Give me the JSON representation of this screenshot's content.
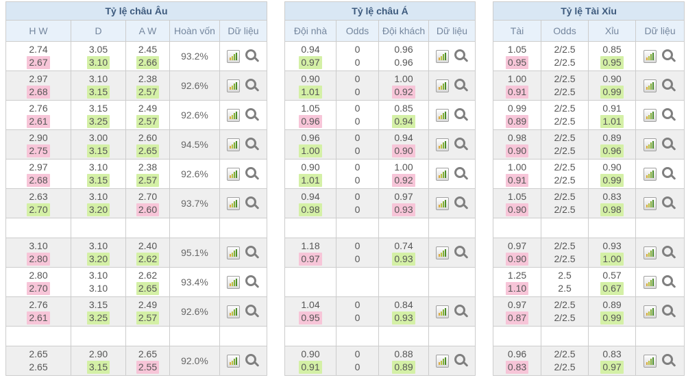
{
  "colors": {
    "pink": "#f7c5d8",
    "green": "#d4f0a6"
  },
  "icons": {
    "chart_icon": "bar-chart",
    "search_icon": "magnifier"
  },
  "tables": [
    {
      "id": "european-odds",
      "title": "Tỷ lệ châu Âu",
      "columns": [
        "H W",
        "D",
        "A W",
        "Hoàn vốn",
        "Dữ liệu"
      ],
      "has_payout": true,
      "rows": [
        {
          "type": "data",
          "odds": [
            [
              "2.74",
              "2.67",
              "pink"
            ],
            [
              "3.05",
              "3.10",
              "green"
            ],
            [
              "2.45",
              "2.66",
              "green"
            ]
          ],
          "payout": "93.2%"
        },
        {
          "type": "data",
          "odds": [
            [
              "2.97",
              "2.68",
              "pink"
            ],
            [
              "3.10",
              "3.15",
              "green"
            ],
            [
              "2.38",
              "2.57",
              "green"
            ]
          ],
          "payout": "92.6%"
        },
        {
          "type": "data",
          "odds": [
            [
              "2.76",
              "2.61",
              "pink"
            ],
            [
              "3.15",
              "3.25",
              "green"
            ],
            [
              "2.49",
              "2.57",
              "green"
            ]
          ],
          "payout": "92.6%"
        },
        {
          "type": "data",
          "odds": [
            [
              "2.90",
              "2.75",
              "pink"
            ],
            [
              "3.00",
              "3.15",
              "green"
            ],
            [
              "2.60",
              "2.65",
              "green"
            ]
          ],
          "payout": "94.5%"
        },
        {
          "type": "data",
          "odds": [
            [
              "2.97",
              "2.68",
              "pink"
            ],
            [
              "3.10",
              "3.15",
              "green"
            ],
            [
              "2.38",
              "2.57",
              "green"
            ]
          ],
          "payout": "92.6%"
        },
        {
          "type": "data",
          "odds": [
            [
              "2.63",
              "2.70",
              "green"
            ],
            [
              "3.10",
              "3.20",
              "green"
            ],
            [
              "2.70",
              "2.60",
              "pink"
            ]
          ],
          "payout": "93.7%"
        },
        {
          "type": "spacer"
        },
        {
          "type": "data",
          "odds": [
            [
              "3.10",
              "2.80",
              "pink"
            ],
            [
              "3.10",
              "3.20",
              "green"
            ],
            [
              "2.40",
              "2.62",
              "green"
            ]
          ],
          "payout": "95.1%"
        },
        {
          "type": "data",
          "odds": [
            [
              "2.80",
              "2.70",
              "pink"
            ],
            [
              "3.10",
              "3.10",
              null
            ],
            [
              "2.62",
              "2.65",
              "green"
            ]
          ],
          "payout": "93.4%"
        },
        {
          "type": "data",
          "odds": [
            [
              "2.76",
              "2.61",
              "pink"
            ],
            [
              "3.15",
              "3.25",
              "green"
            ],
            [
              "2.49",
              "2.57",
              "green"
            ]
          ],
          "payout": "92.6%"
        },
        {
          "type": "spacer"
        },
        {
          "type": "data",
          "odds": [
            [
              "2.65",
              "2.65",
              null
            ],
            [
              "2.90",
              "3.15",
              "green"
            ],
            [
              "2.65",
              "2.55",
              "pink"
            ]
          ],
          "payout": "92.0%"
        }
      ]
    },
    {
      "id": "asian-odds",
      "title": "Tỷ lệ châu Á",
      "columns": [
        "Đội nhà",
        "Odds",
        "Đội khách",
        "Dữ liệu"
      ],
      "has_payout": false,
      "rows": [
        {
          "type": "data",
          "odds": [
            [
              "0.94",
              "0.97",
              "green"
            ],
            [
              "0",
              "0",
              null
            ],
            [
              "0.96",
              "0.96",
              null
            ]
          ]
        },
        {
          "type": "data",
          "odds": [
            [
              "0.90",
              "1.01",
              "green"
            ],
            [
              "0",
              "0",
              null
            ],
            [
              "1.00",
              "0.92",
              "pink"
            ]
          ]
        },
        {
          "type": "data",
          "odds": [
            [
              "1.05",
              "0.96",
              "pink"
            ],
            [
              "0",
              "0",
              null
            ],
            [
              "0.85",
              "0.94",
              "green"
            ]
          ]
        },
        {
          "type": "data",
          "odds": [
            [
              "0.96",
              "1.00",
              "green"
            ],
            [
              "0",
              "0",
              null
            ],
            [
              "0.94",
              "0.90",
              "pink"
            ]
          ]
        },
        {
          "type": "data",
          "odds": [
            [
              "0.90",
              "1.01",
              "green"
            ],
            [
              "0",
              "0",
              null
            ],
            [
              "1.00",
              "0.92",
              "pink"
            ]
          ]
        },
        {
          "type": "data",
          "odds": [
            [
              "0.94",
              "0.98",
              "green"
            ],
            [
              "0",
              "0",
              null
            ],
            [
              "0.97",
              "0.93",
              "pink"
            ]
          ]
        },
        {
          "type": "spacer"
        },
        {
          "type": "data",
          "odds": [
            [
              "1.18",
              "0.97",
              "pink"
            ],
            [
              "0",
              "0",
              null
            ],
            [
              "0.74",
              "0.93",
              "green"
            ]
          ]
        },
        {
          "type": "blank"
        },
        {
          "type": "data",
          "odds": [
            [
              "1.04",
              "0.95",
              "pink"
            ],
            [
              "0",
              "0",
              null
            ],
            [
              "0.84",
              "0.93",
              "green"
            ]
          ]
        },
        {
          "type": "spacer"
        },
        {
          "type": "data",
          "odds": [
            [
              "0.90",
              "0.91",
              "green"
            ],
            [
              "0",
              "0",
              null
            ],
            [
              "0.88",
              "0.89",
              "green"
            ]
          ]
        }
      ]
    },
    {
      "id": "over-under-odds",
      "title": "Tỷ lệ Tài Xỉu",
      "columns": [
        "Tài",
        "Odds",
        "Xỉu",
        "Dữ liệu"
      ],
      "has_payout": false,
      "rows": [
        {
          "type": "data",
          "odds": [
            [
              "1.05",
              "0.95",
              "pink"
            ],
            [
              "2/2.5",
              "2/2.5",
              null
            ],
            [
              "0.85",
              "0.95",
              "green"
            ]
          ]
        },
        {
          "type": "data",
          "odds": [
            [
              "1.00",
              "0.91",
              "pink"
            ],
            [
              "2/2.5",
              "2/2.5",
              null
            ],
            [
              "0.90",
              "0.99",
              "green"
            ]
          ]
        },
        {
          "type": "data",
          "odds": [
            [
              "0.99",
              "0.89",
              "pink"
            ],
            [
              "2/2.5",
              "2/2.5",
              null
            ],
            [
              "0.91",
              "1.01",
              "green"
            ]
          ]
        },
        {
          "type": "data",
          "odds": [
            [
              "0.98",
              "0.90",
              "pink"
            ],
            [
              "2/2.5",
              "2/2.5",
              null
            ],
            [
              "0.89",
              "0.96",
              "green"
            ]
          ]
        },
        {
          "type": "data",
          "odds": [
            [
              "1.00",
              "0.91",
              "pink"
            ],
            [
              "2/2.5",
              "2/2.5",
              null
            ],
            [
              "0.90",
              "0.99",
              "green"
            ]
          ]
        },
        {
          "type": "data",
          "odds": [
            [
              "1.05",
              "0.90",
              "pink"
            ],
            [
              "2/2.5",
              "2/2.5",
              null
            ],
            [
              "0.83",
              "0.98",
              "green"
            ]
          ]
        },
        {
          "type": "spacer"
        },
        {
          "type": "data",
          "odds": [
            [
              "0.97",
              "0.90",
              "pink"
            ],
            [
              "2/2.5",
              "2/2.5",
              null
            ],
            [
              "0.93",
              "1.00",
              "green"
            ]
          ]
        },
        {
          "type": "data",
          "odds": [
            [
              "1.25",
              "1.10",
              "pink"
            ],
            [
              "2.5",
              "2.5",
              null
            ],
            [
              "0.57",
              "0.67",
              "green"
            ]
          ]
        },
        {
          "type": "data",
          "odds": [
            [
              "0.97",
              "0.87",
              "pink"
            ],
            [
              "2/2.5",
              "2/2.5",
              null
            ],
            [
              "0.89",
              "0.99",
              "green"
            ]
          ]
        },
        {
          "type": "spacer"
        },
        {
          "type": "data",
          "odds": [
            [
              "0.96",
              "0.83",
              "pink"
            ],
            [
              "2/2.5",
              "2/2.5",
              null
            ],
            [
              "0.83",
              "0.97",
              "green"
            ]
          ]
        }
      ]
    }
  ]
}
